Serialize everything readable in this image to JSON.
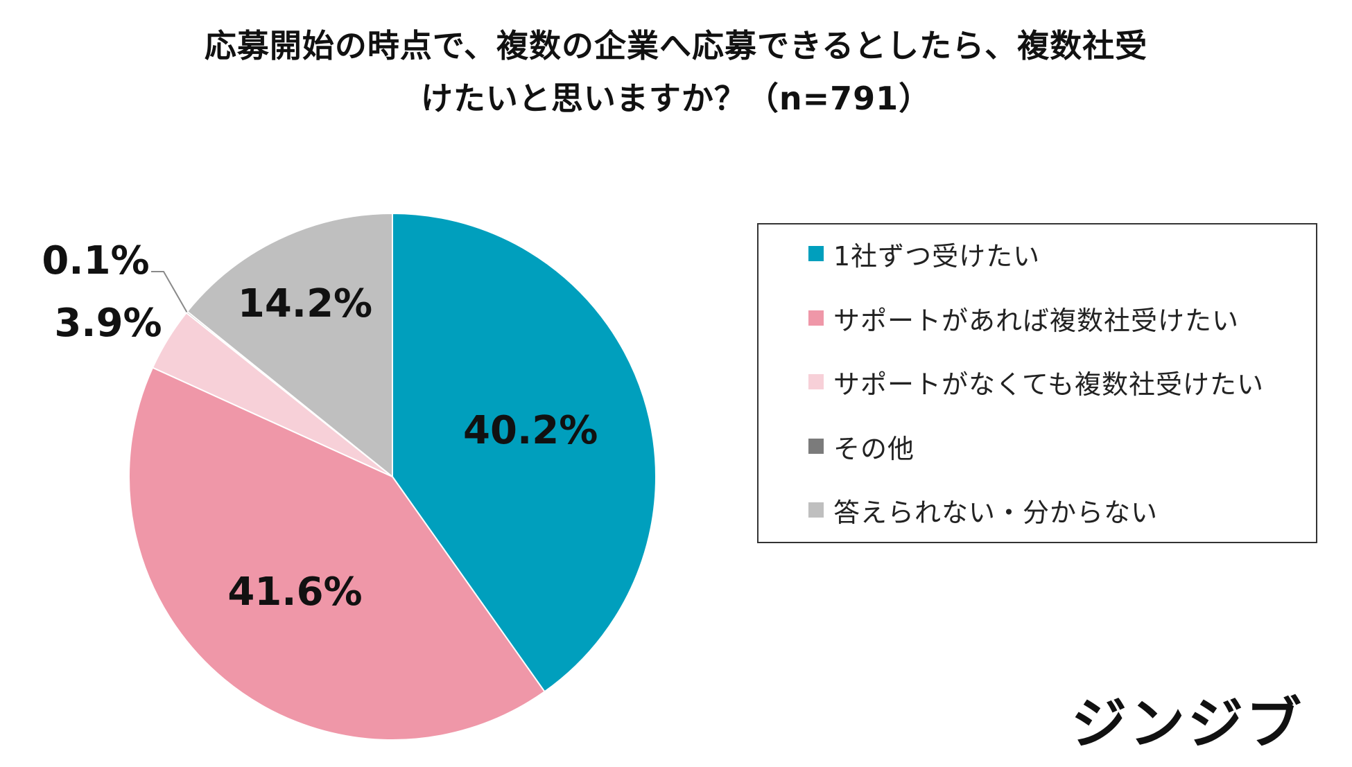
{
  "title": {
    "line1": "応募開始の時点で、複数の企業へ応募できるとしたら、複数社受",
    "line2": "けたいと思いますか？（n=791）"
  },
  "chart_data": {
    "type": "pie",
    "title": "応募開始の時点で、複数の企業へ応募できるとしたら、複数社受けたいと思いますか？（n=791）",
    "start_angle": "12 o'clock",
    "direction": "clockwise",
    "slices": [
      {
        "name": "1社ずつ受けたい",
        "value": 40.2,
        "label": "40.2%",
        "color": "#009FBD"
      },
      {
        "name": "サポートがあれば複数社受けたい",
        "value": 41.6,
        "label": "41.6%",
        "color": "#EF97A8"
      },
      {
        "name": "サポートがなくても複数社受けたい",
        "value": 3.9,
        "label": "3.9%",
        "color": "#F7D0D8"
      },
      {
        "name": "その他",
        "value": 0.1,
        "label": "0.1%",
        "color": "#7B7B7B"
      },
      {
        "name": "答えられない・分からない",
        "value": 14.2,
        "label": "14.2%",
        "color": "#BFBFBF"
      }
    ],
    "legend_position": "right"
  },
  "logo": {
    "text": "ジンジブ"
  }
}
